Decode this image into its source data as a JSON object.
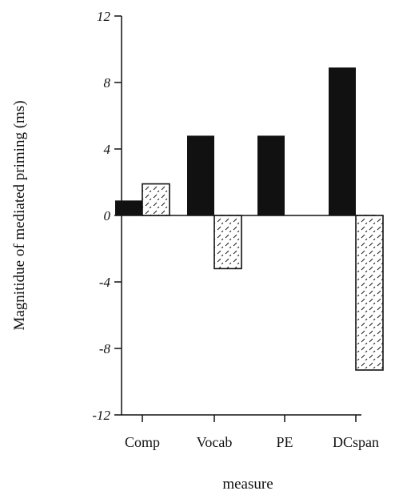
{
  "chart_data": {
    "type": "bar",
    "title": "",
    "xlabel": "measure",
    "ylabel": "Magnitidue of mediated priming (ms)",
    "categories": [
      "Comp",
      "Vocab",
      "PE",
      "DCspan"
    ],
    "series": [
      {
        "style": "solid",
        "color": "#111111",
        "values": [
          0.9,
          4.8,
          4.8,
          8.9
        ]
      },
      {
        "style": "hatched",
        "color": "#111111",
        "values": [
          1.9,
          -3.2,
          null,
          -9.3
        ]
      }
    ],
    "ylim": [
      -12,
      12
    ],
    "yticks": [
      -12,
      -8,
      -4,
      0,
      4,
      8,
      12
    ],
    "ytick_labels": [
      "-12",
      "-8",
      "-4",
      "0",
      "4",
      "8",
      "12"
    ],
    "grid": false,
    "legend": "none"
  }
}
